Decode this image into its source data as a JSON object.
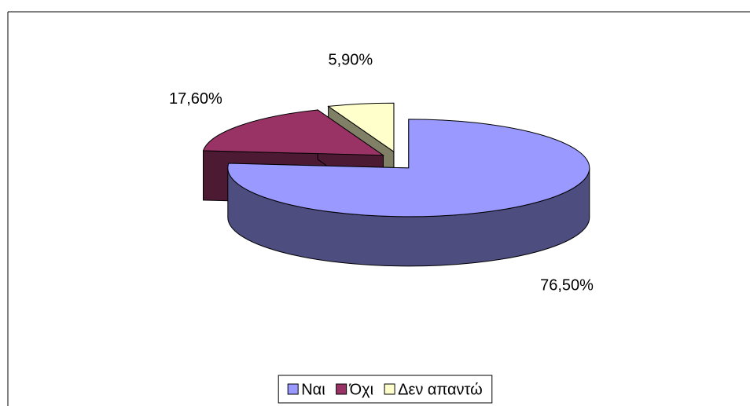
{
  "chart_data": {
    "type": "pie",
    "categories": [
      "Ναι",
      "Όχι",
      "Δεν απαντώ"
    ],
    "values": [
      76.5,
      17.6,
      5.9
    ],
    "value_labels": [
      "76,50%",
      "17,60%",
      "5,90%"
    ],
    "colors": [
      "#9999ff",
      "#993366",
      "#ffffcc"
    ],
    "legend": "bottom"
  }
}
